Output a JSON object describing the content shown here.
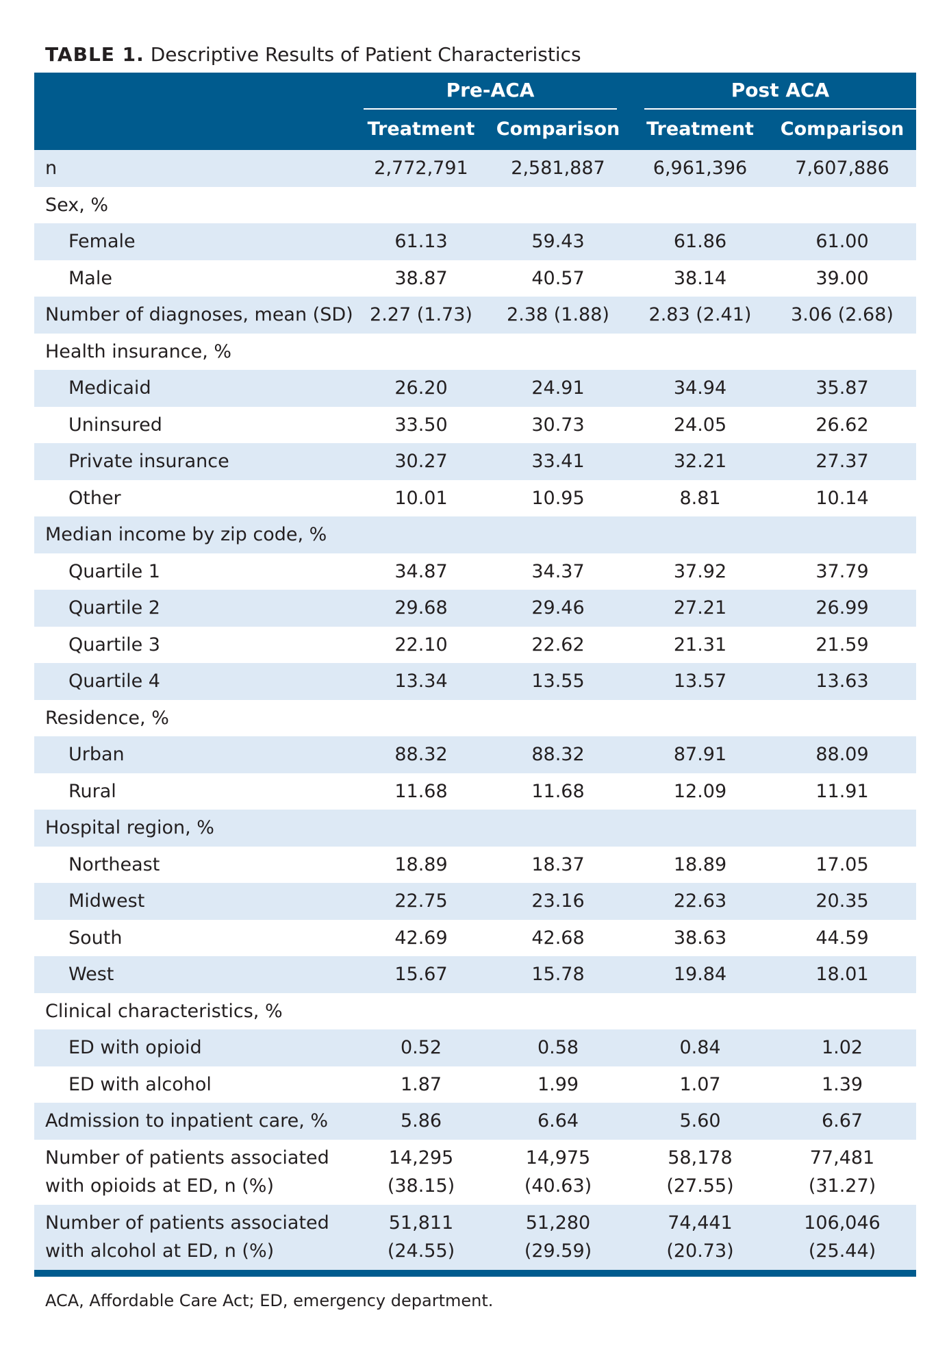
{
  "caption": {
    "label": "TABLE 1.",
    "text": "Descriptive Results of Patient Characteristics"
  },
  "header": {
    "groups": [
      "Pre-ACA",
      "Post ACA"
    ],
    "subheaders": [
      "Treatment",
      "Comparison",
      "Treatment",
      "Comparison"
    ]
  },
  "rows": [
    {
      "label": "n",
      "values": [
        "2,772,791",
        "2,581,887",
        "6,961,396",
        "7,607,886"
      ]
    },
    {
      "label": "Sex, %",
      "values": [
        "",
        "",
        "",
        ""
      ]
    },
    {
      "label": "Female",
      "values": [
        "61.13",
        "59.43",
        "61.86",
        "61.00"
      ]
    },
    {
      "label": "Male",
      "values": [
        "38.87",
        "40.57",
        "38.14",
        "39.00"
      ]
    },
    {
      "label": "Number of diagnoses, mean (SD)",
      "values": [
        "2.27 (1.73)",
        "2.38 (1.88)",
        "2.83 (2.41)",
        "3.06 (2.68)"
      ]
    },
    {
      "label": "Health insurance, %",
      "values": [
        "",
        "",
        "",
        ""
      ]
    },
    {
      "label": "Medicaid",
      "values": [
        "26.20",
        "24.91",
        "34.94",
        "35.87"
      ]
    },
    {
      "label": "Uninsured",
      "values": [
        "33.50",
        "30.73",
        "24.05",
        "26.62"
      ]
    },
    {
      "label": "Private insurance",
      "values": [
        "30.27",
        "33.41",
        "32.21",
        "27.37"
      ]
    },
    {
      "label": "Other",
      "values": [
        "10.01",
        "10.95",
        "8.81",
        "10.14"
      ]
    },
    {
      "label": "Median income by zip code, %",
      "values": [
        "",
        "",
        "",
        ""
      ]
    },
    {
      "label": "Quartile 1",
      "values": [
        "34.87",
        "34.37",
        "37.92",
        "37.79"
      ]
    },
    {
      "label": "Quartile 2",
      "values": [
        "29.68",
        "29.46",
        "27.21",
        "26.99"
      ]
    },
    {
      "label": "Quartile 3",
      "values": [
        "22.10",
        "22.62",
        "21.31",
        "21.59"
      ]
    },
    {
      "label": "Quartile 4",
      "values": [
        "13.34",
        "13.55",
        "13.57",
        "13.63"
      ]
    },
    {
      "label": "Residence, %",
      "values": [
        "",
        "",
        "",
        ""
      ]
    },
    {
      "label": "Urban",
      "values": [
        "88.32",
        "88.32",
        "87.91",
        "88.09"
      ]
    },
    {
      "label": "Rural",
      "values": [
        "11.68",
        "11.68",
        "12.09",
        "11.91"
      ]
    },
    {
      "label": "Hospital region, %",
      "values": [
        "",
        "",
        "",
        ""
      ]
    },
    {
      "label": "Northeast",
      "values": [
        "18.89",
        "18.37",
        "18.89",
        "17.05"
      ]
    },
    {
      "label": "Midwest",
      "values": [
        "22.75",
        "23.16",
        "22.63",
        "20.35"
      ]
    },
    {
      "label": "South",
      "values": [
        "42.69",
        "42.68",
        "38.63",
        "44.59"
      ]
    },
    {
      "label": "West",
      "values": [
        "15.67",
        "15.78",
        "19.84",
        "18.01"
      ]
    },
    {
      "label": "Clinical characteristics, %",
      "values": [
        "",
        "",
        "",
        ""
      ]
    },
    {
      "label": "ED with opioid",
      "values": [
        "0.52",
        "0.58",
        "0.84",
        "1.02"
      ]
    },
    {
      "label": "ED with alcohol",
      "values": [
        "1.87",
        "1.99",
        "1.07",
        "1.39"
      ]
    },
    {
      "label": "Admission to inpatient care, %",
      "values": [
        "5.86",
        "6.64",
        "5.60",
        "6.67"
      ]
    }
  ],
  "tall_rows": [
    {
      "label_line1": "Number of patients associated",
      "label_line2": "with opioids at ED, n (%)",
      "values": [
        [
          "14,295",
          "(38.15)"
        ],
        [
          "14,975",
          "(40.63)"
        ],
        [
          "58,178",
          "(27.55)"
        ],
        [
          "77,481",
          "(31.27)"
        ]
      ]
    },
    {
      "label_line1": "Number of patients associated",
      "label_line2": "with alcohol at ED, n (%)",
      "values": [
        [
          "51,811",
          "(24.55)"
        ],
        [
          "51,280",
          "(29.59)"
        ],
        [
          "74,441",
          "(20.73)"
        ],
        [
          "106,046",
          "(25.44)"
        ]
      ]
    }
  ],
  "footnote": "ACA, Affordable Care Act; ED, emergency department.",
  "colors": {
    "header_bg": "#005b8e",
    "row_shade": "#dde9f5",
    "text": "#231f20"
  }
}
